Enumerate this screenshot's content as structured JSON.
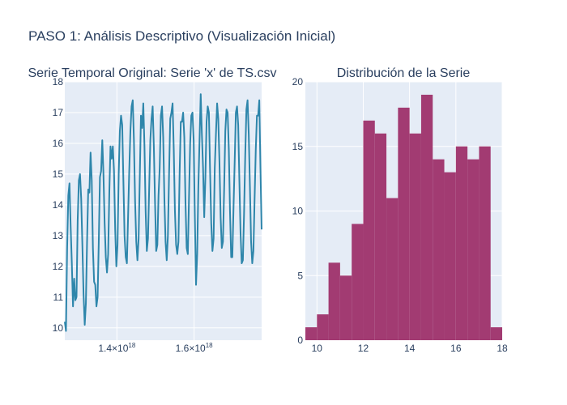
{
  "title": "PASO 1: Análisis Descriptivo (Visualización Inicial)",
  "chart_data": [
    {
      "type": "line",
      "title": "Serie Temporal Original: Serie 'x' de TS.csv",
      "xlabel": "",
      "ylabel": "",
      "xlim": [
        1.265e+18,
        1.775e+18
      ],
      "ylim": [
        9.6,
        18
      ],
      "x_ticks": [
        {
          "value": 1.4e+18,
          "mantissa": "1.4",
          "times": "×10",
          "exp": "18"
        },
        {
          "value": 1.6e+18,
          "mantissa": "1.6",
          "times": "×10",
          "exp": "18"
        }
      ],
      "y_ticks": [
        10,
        11,
        12,
        13,
        14,
        15,
        16,
        17,
        18
      ],
      "grid": true,
      "line_color": "#2e86ab",
      "series": [
        {
          "values": [
            10.2,
            9.9,
            12.6,
            14.3,
            14.7,
            13.3,
            12.1,
            10.7,
            11.6,
            10.9,
            11.0,
            13.5,
            14.8,
            15.0,
            14.2,
            12.7,
            11.1,
            10.1,
            10.8,
            12.8,
            14.5,
            14.4,
            15.7,
            14.8,
            12.6,
            11.5,
            11.4,
            10.7,
            11.0,
            12.8,
            14.9,
            15.1,
            16.1,
            15.0,
            13.4,
            12.3,
            11.8,
            12.4,
            14.4,
            15.9,
            15.5,
            15.9,
            15.1,
            13.2,
            12.0,
            12.7,
            15.0,
            16.4,
            16.9,
            16.6,
            14.8,
            13.0,
            12.3,
            12.1,
            13.6,
            15.1,
            16.4,
            17.2,
            17.4,
            16.1,
            14.1,
            12.8,
            12.2,
            12.9,
            14.9,
            16.9,
            16.5,
            17.3,
            15.9,
            13.8,
            12.5,
            12.9,
            14.5,
            16.1,
            16.8,
            17.2,
            15.9,
            14.1,
            12.5,
            12.7,
            14.3,
            15.2,
            16.9,
            17.2,
            16.2,
            14.2,
            12.8,
            12.2,
            13.0,
            15.0,
            16.8,
            17.0,
            17.3,
            15.8,
            13.8,
            12.7,
            12.4,
            12.8,
            15.0,
            16.7,
            16.7,
            17.0,
            16.2,
            14.1,
            12.6,
            12.4,
            14.2,
            16.0,
            16.9,
            17.0,
            16.1,
            13.6,
            11.4,
            12.4,
            14.6,
            16.1,
            17.6,
            16.3,
            15.2,
            13.6,
            14.9,
            16.7,
            17.2,
            17.0,
            15.1,
            13.4,
            12.5,
            12.9,
            15.2,
            16.3,
            17.3,
            16.8,
            15.4,
            13.6,
            12.6,
            12.8,
            14.5,
            16.4,
            17.1,
            17.0,
            15.8,
            13.8,
            12.3,
            12.3,
            13.9,
            15.4,
            17.0,
            17.2,
            16.6,
            14.8,
            13.1,
            12.1,
            12.2,
            13.7,
            15.6,
            17.1,
            17.4,
            16.3,
            14.6,
            12.8,
            12.1,
            12.5,
            14.2,
            15.8,
            16.9,
            16.9,
            17.4,
            15.2,
            13.2
          ]
        }
      ]
    },
    {
      "type": "bar",
      "title": "Distribución de la Serie",
      "xlabel": "",
      "ylabel": "",
      "xlim": [
        9.5,
        18.0
      ],
      "ylim": [
        0,
        20
      ],
      "x_ticks": [
        10,
        12,
        14,
        16,
        18
      ],
      "y_ticks": [
        0,
        5,
        10,
        15,
        20
      ],
      "grid": true,
      "bar_color": "#a23b72",
      "bin_start": 9.5,
      "bin_width": 0.5,
      "values": [
        1,
        2,
        6,
        5,
        9,
        17,
        16,
        11,
        18,
        16,
        19,
        14,
        13,
        15,
        14,
        15,
        1
      ]
    }
  ]
}
